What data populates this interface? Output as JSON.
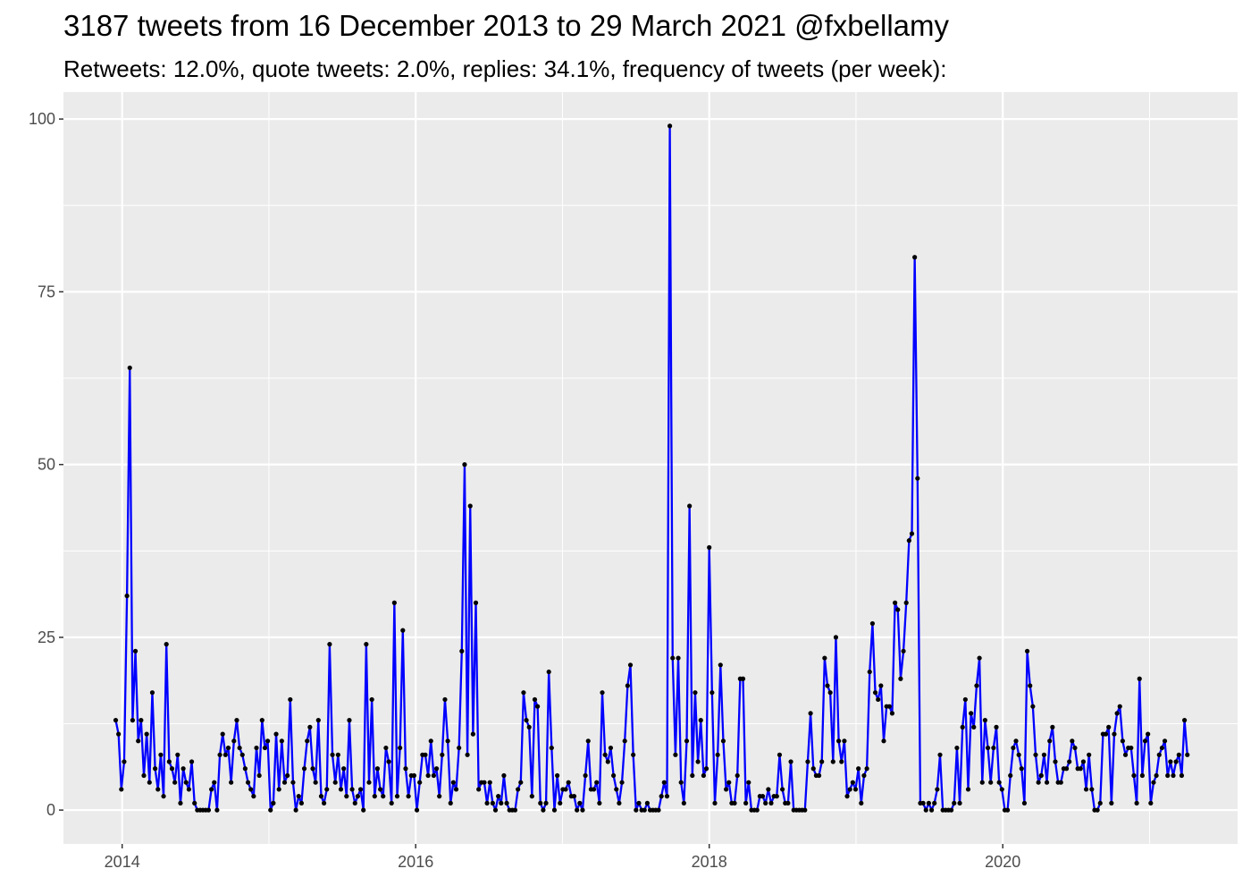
{
  "title": "3187 tweets from 16 December 2013 to 29 March 2021 @fxbellamy",
  "subtitle": "Retweets: 12.0%, quote tweets: 2.0%, replies: 34.1%, frequency of tweets (per week):",
  "colors": {
    "panel": "#ebebeb",
    "grid": "#ffffff",
    "line": "#0000ff",
    "point": "#000000",
    "tick_text": "#4d4d4d"
  },
  "chart_data": {
    "type": "line",
    "title": "3187 tweets from 16 December 2013 to 29 March 2021 @fxbellamy",
    "subtitle": "Retweets: 12.0%, quote tweets: 2.0%, replies: 34.1%, frequency of tweets (per week):",
    "xlabel": "",
    "ylabel": "",
    "x_start": "2013-12-16",
    "x_end": "2021-03-29",
    "x_step": "1 week",
    "xlim": [
      2013.6,
      2021.6
    ],
    "ylim": [
      -4.9,
      103.9
    ],
    "x_ticks": [
      2014,
      2016,
      2018,
      2020
    ],
    "y_ticks": [
      0,
      25,
      50,
      75,
      100
    ],
    "grid": true,
    "series": [
      {
        "values": [
          13,
          11,
          3,
          7,
          31,
          64,
          13,
          23,
          10,
          13,
          5,
          11,
          4,
          17,
          6,
          3,
          8,
          2,
          24,
          7,
          6,
          4,
          8,
          1,
          6,
          4,
          3,
          7,
          1,
          0,
          0,
          0,
          0,
          0,
          3,
          4,
          0,
          8,
          11,
          8,
          9,
          4,
          10,
          13,
          9,
          8,
          6,
          4,
          3,
          2,
          9,
          5,
          13,
          9,
          10,
          0,
          1,
          11,
          3,
          10,
          4,
          5,
          16,
          4,
          0,
          2,
          1,
          6,
          10,
          12,
          6,
          4,
          13,
          2,
          1,
          3,
          24,
          8,
          4,
          8,
          3,
          6,
          2,
          13,
          3,
          1,
          2,
          3,
          0,
          24,
          4,
          16,
          2,
          6,
          3,
          2,
          9,
          7,
          1,
          30,
          2,
          9,
          26,
          6,
          2,
          5,
          5,
          0,
          4,
          8,
          8,
          5,
          10,
          5,
          6,
          2,
          8,
          16,
          10,
          1,
          4,
          3,
          9,
          23,
          50,
          8,
          44,
          11,
          30,
          3,
          4,
          4,
          1,
          4,
          1,
          0,
          2,
          1,
          5,
          1,
          0,
          0,
          0,
          3,
          4,
          17,
          13,
          12,
          2,
          16,
          15,
          1,
          0,
          1,
          20,
          9,
          0,
          5,
          1,
          3,
          3,
          4,
          2,
          2,
          0,
          1,
          0,
          5,
          10,
          3,
          3,
          4,
          1,
          17,
          8,
          7,
          9,
          5,
          3,
          1,
          4,
          10,
          18,
          21,
          8,
          0,
          1,
          0,
          0,
          1,
          0,
          0,
          0,
          0,
          2,
          4,
          2,
          99,
          22,
          8,
          22,
          4,
          1,
          10,
          44,
          5,
          17,
          7,
          13,
          5,
          6,
          38,
          17,
          1,
          8,
          21,
          10,
          3,
          4,
          1,
          1,
          5,
          19,
          19,
          1,
          4,
          0,
          0,
          0,
          2,
          2,
          1,
          3,
          1,
          2,
          2,
          8,
          3,
          1,
          1,
          7,
          0,
          0,
          0,
          0,
          0,
          7,
          14,
          6,
          5,
          5,
          7,
          22,
          18,
          17,
          7,
          25,
          10,
          7,
          10,
          2,
          3,
          4,
          3,
          6,
          1,
          5,
          6,
          20,
          27,
          17,
          16,
          18,
          10,
          15,
          15,
          14,
          30,
          29,
          19,
          23,
          30,
          39,
          40,
          80,
          48,
          1,
          1,
          0,
          1,
          0,
          1,
          3,
          8,
          0,
          0,
          0,
          0,
          1,
          9,
          1,
          12,
          16,
          3,
          14,
          12,
          18,
          22,
          4,
          13,
          9,
          4,
          9,
          12,
          4,
          3,
          0,
          0,
          5,
          9,
          10,
          8,
          6,
          1,
          23,
          18,
          15,
          8,
          4,
          5,
          8,
          4,
          10,
          12,
          7,
          4,
          4,
          6,
          6,
          7,
          10,
          9,
          6,
          6,
          7,
          3,
          8,
          3,
          0,
          0,
          1,
          11,
          11,
          12,
          1,
          11,
          14,
          15,
          10,
          8,
          9,
          9,
          5,
          1,
          19,
          5,
          10,
          11,
          1,
          4,
          5,
          8,
          9,
          10,
          5,
          7,
          5,
          7,
          8,
          5,
          13,
          8
        ]
      }
    ]
  }
}
